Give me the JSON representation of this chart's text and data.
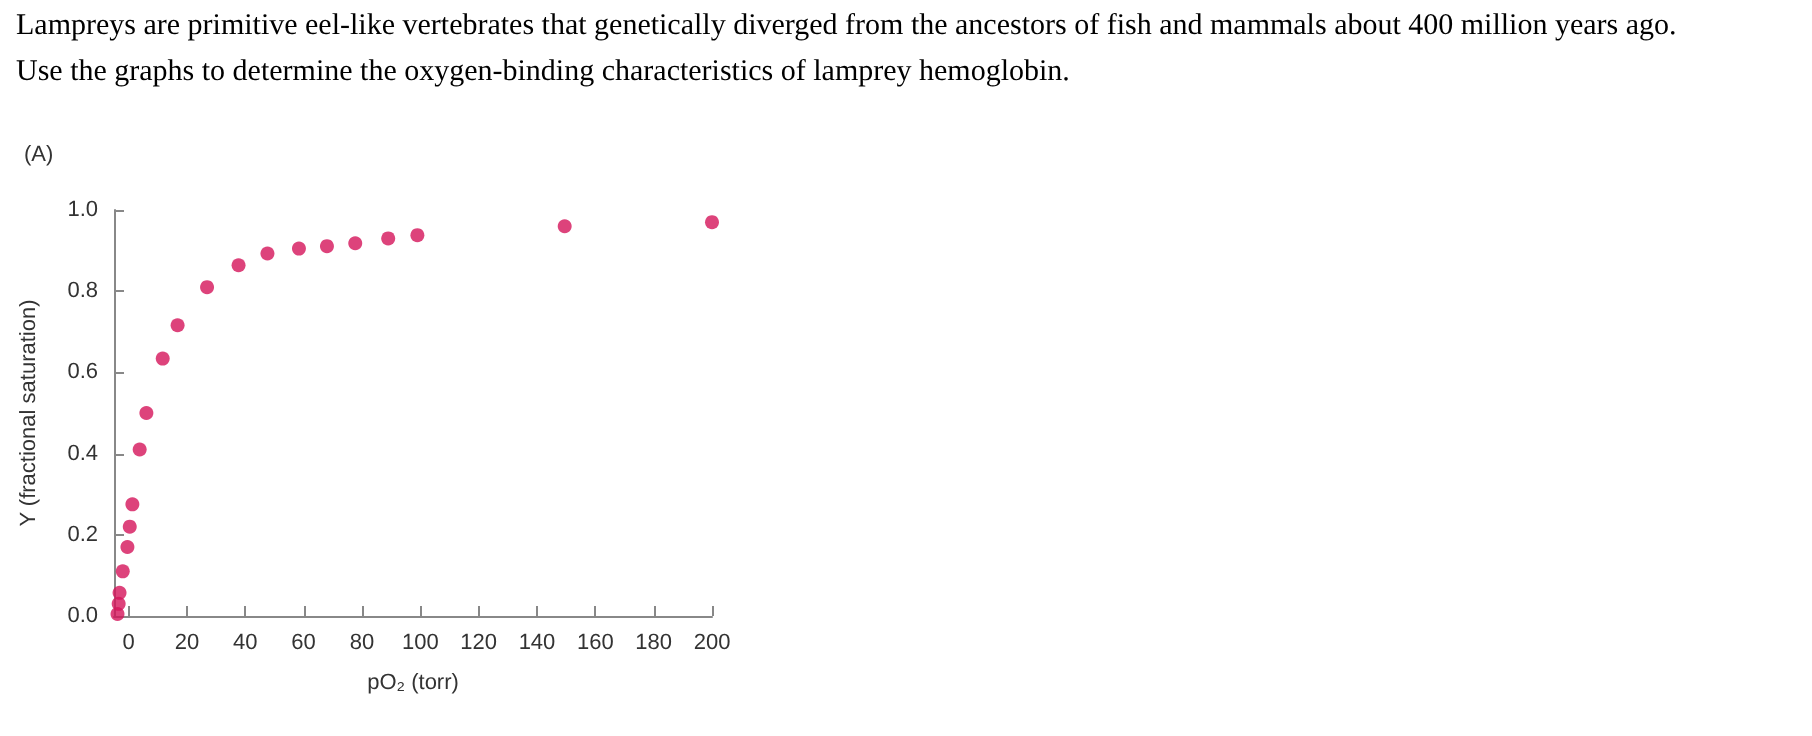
{
  "chart_data": {
    "type": "scatter",
    "title": "Lampreys are primitive eel-like vertebrates that genetically diverged from the ancestors of fish and mammals about 400 million years ago. Use the graphs to determine the oxygen-binding characteristics of lamprey hemoglobin.",
    "annotations": [
      "(A)"
    ],
    "xlabel": "pO₂ (torr)",
    "ylabel": "Y (fractional saturation)",
    "x": [
      -3.8,
      -3.4,
      -3.1,
      -2,
      -0.4,
      0.4,
      1.3,
      3.8,
      6.1,
      11.7,
      16.8,
      26.9,
      37.7,
      47.6,
      58.4,
      68,
      77.7,
      89,
      99,
      149.5,
      200
    ],
    "series": [
      {
        "color": "#d4145a",
        "values": [
          0.005,
          0.03,
          0.057,
          0.11,
          0.17,
          0.22,
          0.275,
          0.41,
          0.5,
          0.634,
          0.716,
          0.81,
          0.864,
          0.893,
          0.905,
          0.911,
          0.918,
          0.93,
          0.938,
          0.96,
          0.97
        ]
      }
    ],
    "xlim": [
      -5,
      200
    ],
    "xticks": [
      0,
      20,
      40,
      60,
      80,
      100,
      120,
      140,
      160,
      180,
      200
    ],
    "ylim": [
      0,
      1
    ],
    "yticks": [
      {
        "value": 0,
        "label": "0.0"
      },
      0.2,
      0.4,
      0.6,
      0.8,
      {
        "value": 1,
        "label": "1.0"
      }
    ],
    "marker": "circle",
    "grid": false
  }
}
